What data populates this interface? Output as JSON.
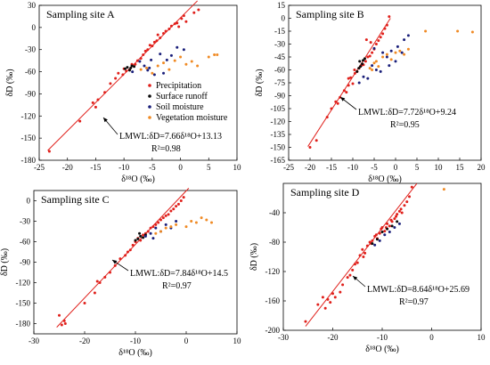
{
  "colors": {
    "precipitation": "#e0201b",
    "surface_runoff": "#0b0b0b",
    "soil_moisture": "#1a1f7a",
    "vegetation_moisture": "#f08a24",
    "lmwl": "#e0201b"
  },
  "legend": [
    "Precipitation",
    "Surface runoff",
    "Soil moisture",
    "Vegetation moisture"
  ],
  "chart_data": [
    {
      "type": "scatter",
      "title": "Sampling site A",
      "xlabel": "δ¹⁸O (‰)",
      "ylabel": "δD (‰)",
      "xlim": [
        -25,
        10
      ],
      "ylim": [
        -180,
        30
      ],
      "xticks": [
        "-25",
        "-20",
        "-15",
        "-10",
        "-5",
        "0",
        "5",
        "10"
      ],
      "yticks": [
        "30",
        "0",
        "-30",
        "-60",
        "-90",
        "-120",
        "-150",
        "-180"
      ],
      "lmwl": {
        "label": "LMWL:δD=7.66δ¹⁸O+13.13",
        "r2": "R²=0.98",
        "slope": 7.66,
        "intercept": 13.13,
        "xrange": [
          -23.5,
          3
        ]
      },
      "series": [
        {
          "name": "Precipitation",
          "x": [
            -23.2,
            -17.8,
            -15.5,
            -15.0,
            -14.6,
            -13.4,
            -12.4,
            -11.5,
            -11.0,
            -10.2,
            -10.0,
            -9.6,
            -9.0,
            -8.6,
            -8.0,
            -7.6,
            -7.0,
            -6.6,
            -6.2,
            -5.8,
            -5.4,
            -5.0,
            -4.6,
            -4.2,
            -3.6,
            -3.0,
            -2.6,
            -2.0,
            -1.6,
            -1.0,
            -0.6,
            -0.3,
            0.2,
            0.6,
            1.0,
            2.4,
            3.2,
            -4.0
          ],
          "y": [
            -168,
            -127,
            -102,
            -108,
            -98,
            -88,
            -76,
            -69,
            -62,
            -64,
            -56,
            -59,
            -57,
            -50,
            -50,
            -45,
            -42,
            -37,
            -32,
            -30,
            -24,
            -25,
            -20,
            -18,
            -14,
            -8,
            -5,
            -2,
            2,
            5,
            6,
            1,
            12,
            16,
            8,
            20,
            24,
            -10
          ]
        },
        {
          "name": "Surface runoff",
          "x": [
            -9.8,
            -9.4,
            -9.0,
            -8.6,
            -8.8,
            -8.2
          ],
          "y": [
            -56,
            -54,
            -58,
            -52,
            -55,
            -53
          ]
        },
        {
          "name": "Soil moisture",
          "x": [
            -8.5,
            -7.2,
            -6.4,
            -5.8,
            -5.2,
            -4.6,
            -3.6,
            -2.4,
            -1.6,
            -0.6,
            0.6,
            -3.0,
            -5.5
          ],
          "y": [
            -60,
            -46,
            -52,
            -58,
            -44,
            -64,
            -36,
            -44,
            -38,
            -27,
            -30,
            -62,
            -55
          ]
        },
        {
          "name": "Vegetation moisture",
          "x": [
            -7.0,
            -6.0,
            -5.0,
            -4.0,
            -3.0,
            -2.0,
            -1.0,
            0.0,
            1.0,
            2.0,
            3.0,
            5.0,
            6.0,
            6.5
          ],
          "y": [
            -57,
            -55,
            -62,
            -52,
            -48,
            -57,
            -45,
            -40,
            -50,
            -46,
            -52,
            -40,
            -37,
            -37
          ]
        }
      ]
    },
    {
      "type": "scatter",
      "title": "Sampling site B",
      "xlabel": "δ¹⁸O (‰)",
      "ylabel": "δD (‰)",
      "xlim": [
        -25,
        20
      ],
      "ylim": [
        -165,
        15
      ],
      "xticks": [
        "-25",
        "-20",
        "-15",
        "-10",
        "-5",
        "0",
        "5",
        "10",
        "15",
        "20"
      ],
      "yticks": [
        "15",
        "0",
        "-15",
        "-30",
        "-45",
        "-60",
        "-75",
        "-90",
        "-105",
        "-120",
        "-135",
        "-150",
        "-165"
      ],
      "lmwl": {
        "label": "LMWL:δD=7.72δ¹⁸O+9.24",
        "r2": "R²=0.95",
        "slope": 7.72,
        "intercept": 9.24,
        "xrange": [
          -20.5,
          -1.2
        ]
      },
      "series": [
        {
          "name": "Precipitation",
          "x": [
            -20.0,
            -18.5,
            -16.0,
            -15.0,
            -14.0,
            -13.5,
            -13.0,
            -12.0,
            -11.5,
            -11.0,
            -10.5,
            -10.0,
            -9.5,
            -9.0,
            -8.5,
            -8.0,
            -7.5,
            -7.0,
            -6.5,
            -6.0,
            -5.5,
            -5.0,
            -4.5,
            -4.0,
            -3.5,
            -3.0,
            -2.5,
            -2.0,
            -1.5,
            -6.8,
            -5.8,
            -11.0,
            -9.6
          ],
          "y": [
            -150,
            -142,
            -115,
            -105,
            -97,
            -99,
            -92,
            -84,
            -86,
            -78,
            -69,
            -76,
            -64,
            -62,
            -58,
            -55,
            -54,
            -50,
            -45,
            -44,
            -40,
            -36,
            -30,
            -26,
            -22,
            -18,
            -12,
            -8,
            2,
            -25,
            -28,
            -70,
            -60
          ]
        },
        {
          "name": "Surface runoff",
          "x": [
            -9.0,
            -8.6,
            -8.2,
            -7.8,
            -8.4,
            -7.6,
            -7.2
          ],
          "y": [
            -62,
            -58,
            -56,
            -53,
            -50,
            -49,
            -47
          ]
        },
        {
          "name": "Soil moisture",
          "x": [
            -8.5,
            -7.5,
            -6.5,
            -5.5,
            -4.5,
            -3.5,
            -3.0,
            -2.0,
            -1.0,
            0.0,
            0.5,
            1.5,
            2.0,
            3.0,
            -5.0,
            -1.5
          ],
          "y": [
            -75,
            -68,
            -70,
            -55,
            -60,
            -62,
            -40,
            -45,
            -38,
            -50,
            -33,
            -40,
            -25,
            -20,
            -35,
            -55
          ]
        },
        {
          "name": "Vegetation moisture",
          "x": [
            -6.0,
            -5.5,
            -5.0,
            -4.5,
            -4.0,
            -3.0,
            -2.0,
            -1.0,
            0.0,
            1.0,
            2.0,
            3.0,
            7.0,
            14.5,
            18.0
          ],
          "y": [
            -58,
            -60,
            -52,
            -50,
            -56,
            -45,
            -42,
            -48,
            -40,
            -38,
            -42,
            -36,
            -15,
            -15,
            -16
          ]
        }
      ]
    },
    {
      "type": "scatter",
      "title": "Sampling site C",
      "xlabel": "δ¹⁸O (‰)",
      "ylabel": "δD (‰)",
      "xlim": [
        -30,
        10
      ],
      "ylim": [
        -195,
        15
      ],
      "xticks": [
        "-30",
        "-20",
        "-10",
        "0",
        "10"
      ],
      "yticks": [
        "0",
        "-30",
        "-60",
        "-90",
        "-120",
        "-150",
        "-180"
      ],
      "lmwl": {
        "label": "LMWL:δD=7.84δ¹⁸O+14.5",
        "r2": "R²=0.97",
        "slope": 7.84,
        "intercept": 14.5,
        "xrange": [
          -25.5,
          0.5
        ]
      },
      "series": [
        {
          "name": "Precipitation",
          "x": [
            -25.0,
            -24.5,
            -23.8,
            -20.0,
            -18.0,
            -17.0,
            -16.0,
            -15.0,
            -14.0,
            -13.0,
            -12.0,
            -11.5,
            -11.0,
            -10.5,
            -10.0,
            -9.5,
            -9.0,
            -8.5,
            -8.0,
            -7.5,
            -7.0,
            -6.5,
            -6.0,
            -5.5,
            -5.0,
            -4.5,
            -4.0,
            -3.5,
            -3.0,
            -2.5,
            -2.0,
            -1.5,
            -1.0,
            -0.5,
            -24.0,
            -17.5
          ],
          "y": [
            -168,
            -182,
            -180,
            -150,
            -135,
            -120,
            -112,
            -105,
            -95,
            -85,
            -80,
            -75,
            -72,
            -65,
            -60,
            -55,
            -58,
            -50,
            -48,
            -45,
            -40,
            -38,
            -35,
            -32,
            -28,
            -25,
            -22,
            -20,
            -15,
            -12,
            -8,
            -5,
            0,
            5,
            -176,
            -118
          ]
        },
        {
          "name": "Surface runoff",
          "x": [
            -10.0,
            -9.5,
            -9.0,
            -8.5,
            -8.0,
            -9.2
          ],
          "y": [
            -58,
            -56,
            -52,
            -54,
            -50,
            -48
          ]
        },
        {
          "name": "Soil moisture",
          "x": [
            -8.0,
            -7.0,
            -6.0,
            -5.0,
            -4.0,
            -3.0,
            -2.0,
            -6.5
          ],
          "y": [
            -52,
            -48,
            -40,
            -45,
            -35,
            -40,
            -30,
            -55
          ]
        },
        {
          "name": "Vegetation moisture",
          "x": [
            -6.0,
            -5.0,
            -4.0,
            -3.0,
            -2.0,
            0.0,
            1.0,
            2.0,
            3.0,
            4.0,
            5.0
          ],
          "y": [
            -48,
            -45,
            -40,
            -38,
            -35,
            -38,
            -30,
            -32,
            -25,
            -28,
            -32
          ]
        }
      ]
    },
    {
      "type": "scatter",
      "title": "Sampling site D",
      "xlabel": "δ¹⁸O (‰)",
      "ylabel": "δD (‰)",
      "xlim": [
        -30,
        10
      ],
      "ylim": [
        -200,
        0
      ],
      "xticks": [
        "-30",
        "-20",
        "-10",
        "0",
        "10"
      ],
      "yticks": [
        "-40",
        "-80",
        "-120",
        "-160",
        "-200"
      ],
      "lmwl": {
        "label": "LMWL:δD=8.64δ¹⁸O+25.69",
        "r2": "R²=0.97",
        "slope": 8.64,
        "intercept": 25.69,
        "xrange": [
          -25.5,
          -3
        ]
      },
      "series": [
        {
          "name": "Precipitation",
          "x": [
            -25.5,
            -23.0,
            -22.0,
            -21.5,
            -21.0,
            -20.5,
            -20.0,
            -19.5,
            -18.0,
            -17.0,
            -16.5,
            -15.5,
            -15.0,
            -14.5,
            -14.0,
            -13.5,
            -13.0,
            -12.5,
            -12.0,
            -11.5,
            -11.0,
            -10.5,
            -10.0,
            -9.5,
            -9.0,
            -8.5,
            -8.0,
            -7.5,
            -7.0,
            -6.5,
            -6.0,
            -5.5,
            -5.0,
            -4.5,
            -4.0,
            -18.5,
            -16.0,
            -13.8,
            -12.2,
            -11.2,
            -10.2,
            -9.2,
            -8.2,
            -7.2,
            -6.2
          ],
          "y": [
            -188,
            -165,
            -155,
            -170,
            -158,
            -162,
            -150,
            -155,
            -138,
            -128,
            -125,
            -110,
            -108,
            -98,
            -90,
            -95,
            -85,
            -80,
            -78,
            -72,
            -75,
            -68,
            -60,
            -65,
            -55,
            -58,
            -52,
            -48,
            -42,
            -38,
            -40,
            -30,
            -25,
            -18,
            -5,
            -148,
            -118,
            -100,
            -82,
            -70,
            -62,
            -60,
            -50,
            -45,
            -35
          ]
        },
        {
          "name": "Surface runoff",
          "x": [
            -12.0,
            -11.0,
            -10.0,
            -9.0,
            -8.0,
            -7.0
          ],
          "y": [
            -82,
            -76,
            -66,
            -62,
            -58,
            -52
          ]
        },
        {
          "name": "Soil moisture",
          "x": [
            -11.5,
            -10.5,
            -9.5,
            -8.5,
            -7.5,
            -6.5
          ],
          "y": [
            -84,
            -78,
            -70,
            -66,
            -60,
            -55
          ]
        },
        {
          "name": "Vegetation moisture",
          "x": [
            2.5
          ],
          "y": [
            -8
          ]
        }
      ]
    }
  ]
}
